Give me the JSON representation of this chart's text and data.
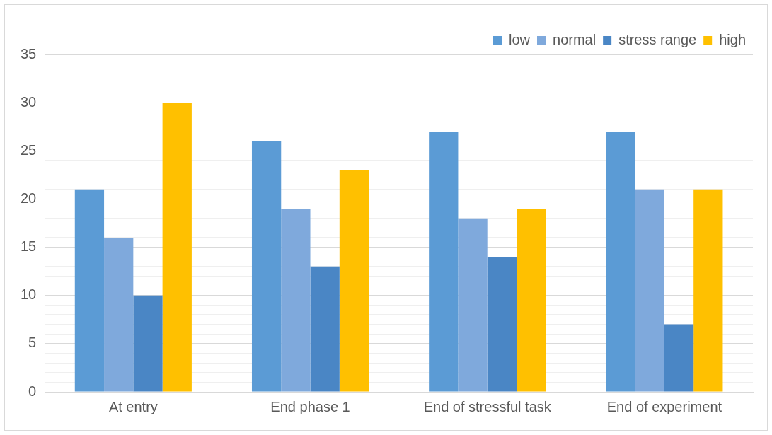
{
  "chart_data": {
    "type": "bar",
    "categories": [
      "At entry",
      "End phase 1",
      "End of stressful task",
      "End of experiment"
    ],
    "series": [
      {
        "name": "low",
        "color": "#5b9bd5",
        "values": [
          21,
          26,
          27,
          27
        ]
      },
      {
        "name": "normal",
        "color": "#7fa9dc",
        "values": [
          16,
          19,
          18,
          21
        ]
      },
      {
        "name": "stress range",
        "color": "#4a86c5",
        "values": [
          10,
          13,
          14,
          7
        ]
      },
      {
        "name": "high",
        "color": "#ffc000",
        "values": [
          30,
          23,
          19,
          21
        ]
      }
    ],
    "ylim": [
      0,
      35
    ],
    "yticks": [
      0,
      {
        "value": 1,
        "label": null
      },
      {
        "value": 2,
        "label": null
      },
      {
        "value": 3,
        "label": null
      },
      {
        "value": 4,
        "label": null
      },
      5,
      {
        "value": 6,
        "label": null
      },
      {
        "value": 7,
        "label": null
      },
      {
        "value": 8,
        "label": null
      },
      {
        "value": 9,
        "label": null
      },
      10,
      {
        "value": 11,
        "label": null
      },
      {
        "value": 12,
        "label": null
      },
      {
        "value": 13,
        "label": null
      },
      {
        "value": 14,
        "label": null
      },
      15,
      {
        "value": 16,
        "label": null
      },
      {
        "value": 17,
        "label": null
      },
      {
        "value": 18,
        "label": null
      },
      {
        "value": 19,
        "label": null
      },
      20,
      {
        "value": 21,
        "label": null
      },
      {
        "value": 22,
        "label": null
      },
      {
        "value": 23,
        "label": null
      },
      {
        "value": 24,
        "label": null
      },
      25,
      {
        "value": 26,
        "label": null
      },
      {
        "value": 27,
        "label": null
      },
      {
        "value": 28,
        "label": null
      },
      {
        "value": 29,
        "label": null
      },
      30,
      {
        "value": 31,
        "label": null
      },
      {
        "value": 32,
        "label": null
      },
      {
        "value": 33,
        "label": null
      },
      {
        "value": 34,
        "label": null
      },
      35
    ],
    "grid": "y",
    "legend": "top right"
  }
}
